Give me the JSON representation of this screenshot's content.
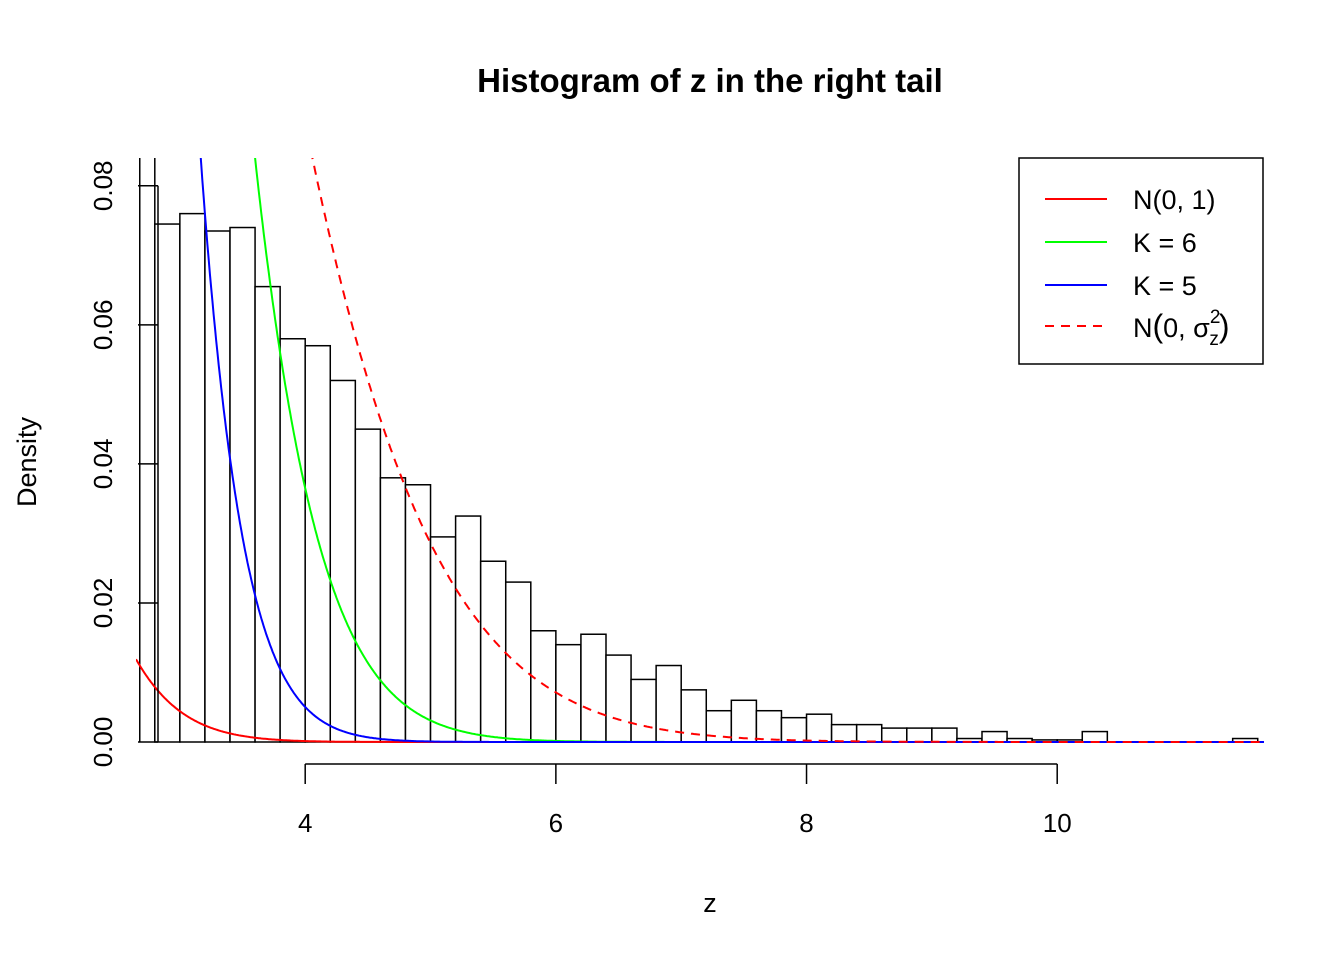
{
  "chart_data": {
    "type": "bar",
    "title": "Histogram of z in the right tail",
    "xlabel": "z",
    "ylabel": "Density",
    "xlim": [
      2.65,
      11.65
    ],
    "ylim": [
      0,
      0.084
    ],
    "x_ticks": [
      "4",
      "6",
      "8",
      "10"
    ],
    "y_ticks": [
      "0.00",
      "0.02",
      "0.04",
      "0.06",
      "0.08"
    ],
    "bin_width": 0.2,
    "bins_start": 2.8,
    "values": [
      0.0745,
      0.076,
      0.0735,
      0.074,
      0.0655,
      0.058,
      0.057,
      0.052,
      0.045,
      0.038,
      0.037,
      0.0295,
      0.0325,
      0.026,
      0.023,
      0.016,
      0.014,
      0.0155,
      0.0125,
      0.009,
      0.011,
      0.0075,
      0.0045,
      0.006,
      0.0045,
      0.0035,
      0.004,
      0.0025,
      0.0025,
      0.002,
      0.002,
      0.002,
      0.0005,
      0.0015,
      0.0005,
      0.0003,
      0.0003,
      0.0015,
      0.0,
      0.0,
      0.0,
      0.0,
      0.0,
      0.0005
    ],
    "first_bar_overflow": true,
    "series": [
      {
        "name": "N(0, 1)",
        "color": "#ff0000",
        "style": "solid"
      },
      {
        "name": "K = 6",
        "color": "#00ff00",
        "style": "solid"
      },
      {
        "name": "K = 5",
        "color": "#0000ff",
        "style": "solid"
      },
      {
        "name": "N(0, σz²)",
        "color": "#ff0000",
        "style": "dashed"
      }
    ],
    "legend": {
      "position": "top-right",
      "labels": {
        "normal": "N(0, 1)",
        "k6": "K = 6",
        "k5": "K = 5",
        "scaled_prefix": "N",
        "scaled_open": "(",
        "scaled_body": "0, σ",
        "scaled_sup": "2",
        "scaled_sub": "z",
        "scaled_close": ")"
      }
    }
  }
}
